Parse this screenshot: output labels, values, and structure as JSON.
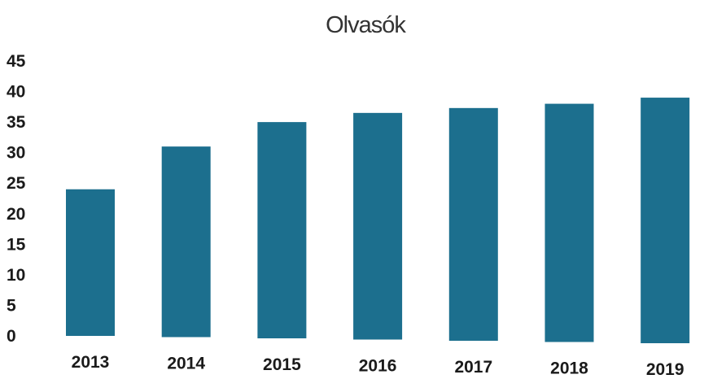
{
  "chart_data": {
    "type": "bar",
    "title": "Olvasók",
    "xlabel": "",
    "ylabel": "",
    "categories": [
      "2013",
      "2014",
      "2015",
      "2016",
      "2017",
      "2018",
      "2019"
    ],
    "values": [
      24,
      31,
      35,
      36.5,
      37.3,
      38,
      39
    ],
    "ylim": [
      0,
      45
    ],
    "yticks": [
      "0",
      "5",
      "10",
      "15",
      "20",
      "25",
      "30",
      "35",
      "40",
      "45"
    ],
    "grid": false,
    "legend": "none",
    "bar_color": "#1c6f8e"
  }
}
